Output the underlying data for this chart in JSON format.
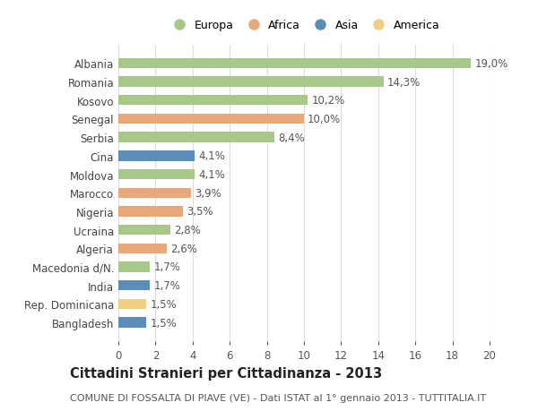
{
  "categories": [
    "Albania",
    "Romania",
    "Kosovo",
    "Senegal",
    "Serbia",
    "Cina",
    "Moldova",
    "Marocco",
    "Nigeria",
    "Ucraina",
    "Algeria",
    "Macedonia d/N.",
    "India",
    "Rep. Dominicana",
    "Bangladesh"
  ],
  "values": [
    19.0,
    14.3,
    10.2,
    10.0,
    8.4,
    4.1,
    4.1,
    3.9,
    3.5,
    2.8,
    2.6,
    1.7,
    1.7,
    1.5,
    1.5
  ],
  "labels": [
    "19,0%",
    "14,3%",
    "10,2%",
    "10,0%",
    "8,4%",
    "4,1%",
    "4,1%",
    "3,9%",
    "3,5%",
    "2,8%",
    "2,6%",
    "1,7%",
    "1,7%",
    "1,5%",
    "1,5%"
  ],
  "continents": [
    "Europa",
    "Europa",
    "Europa",
    "Africa",
    "Europa",
    "Asia",
    "Europa",
    "Africa",
    "Africa",
    "Europa",
    "Africa",
    "Europa",
    "Asia",
    "America",
    "Asia"
  ],
  "continent_colors": {
    "Europa": "#a8c88a",
    "Africa": "#e8a87c",
    "Asia": "#5b8db8",
    "America": "#f0d080"
  },
  "legend_entries": [
    "Europa",
    "Africa",
    "Asia",
    "America"
  ],
  "title": "Cittadini Stranieri per Cittadinanza - 2013",
  "subtitle": "COMUNE DI FOSSALTA DI PIAVE (VE) - Dati ISTAT al 1° gennaio 2013 - TUTTITALIA.IT",
  "xlim": [
    0,
    20
  ],
  "xticks": [
    0,
    2,
    4,
    6,
    8,
    10,
    12,
    14,
    16,
    18,
    20
  ],
  "background_color": "#ffffff",
  "grid_color": "#dddddd",
  "bar_height": 0.55,
  "label_fontsize": 8.5,
  "title_fontsize": 10.5,
  "subtitle_fontsize": 8.0,
  "ytick_fontsize": 8.5,
  "xtick_fontsize": 8.5
}
